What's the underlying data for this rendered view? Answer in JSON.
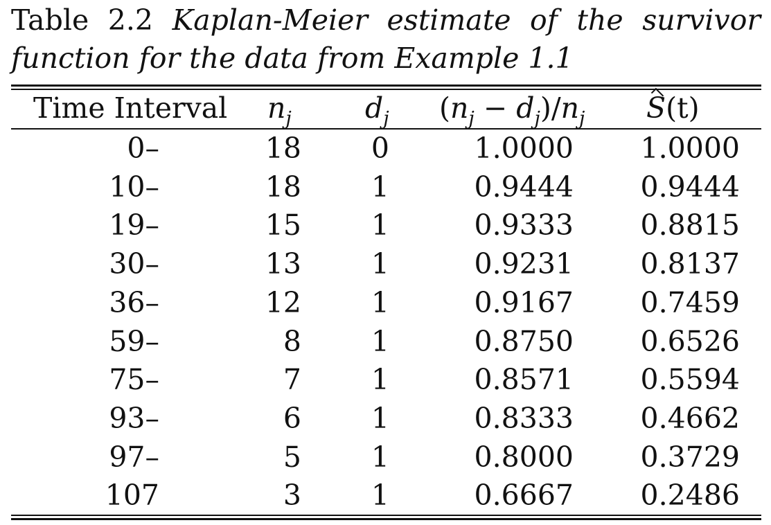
{
  "caption": {
    "label": "Table 2.2",
    "title_line1": "Kaplan-Meier estimate of the survivor",
    "title_line2": "function for the data from Example 1.1"
  },
  "table": {
    "headers": {
      "time_interval": "Time Interval",
      "nj_base": "n",
      "nj_sub": "j",
      "dj_base": "d",
      "dj_sub": "j",
      "ratio_open": "(",
      "ratio_n": "n",
      "ratio_minus": " − ",
      "ratio_d": "d",
      "ratio_close": ")/",
      "ratio_n2": "n",
      "ratio_sub": "j",
      "s_base": "S",
      "s_arg": "(t)"
    },
    "rows": [
      {
        "time": "0–",
        "nj": "18",
        "dj": "0",
        "ratio": "1.0000",
        "s": "1.0000"
      },
      {
        "time": "10–",
        "nj": "18",
        "dj": "1",
        "ratio": "0.9444",
        "s": "0.9444"
      },
      {
        "time": "19–",
        "nj": "15",
        "dj": "1",
        "ratio": "0.9333",
        "s": "0.8815"
      },
      {
        "time": "30–",
        "nj": "13",
        "dj": "1",
        "ratio": "0.9231",
        "s": "0.8137"
      },
      {
        "time": "36–",
        "nj": "12",
        "dj": "1",
        "ratio": "0.9167",
        "s": "0.7459"
      },
      {
        "time": "59–",
        "nj": "8",
        "dj": "1",
        "ratio": "0.8750",
        "s": "0.6526"
      },
      {
        "time": "75–",
        "nj": "7",
        "dj": "1",
        "ratio": "0.8571",
        "s": "0.5594"
      },
      {
        "time": "93–",
        "nj": "6",
        "dj": "1",
        "ratio": "0.8333",
        "s": "0.4662"
      },
      {
        "time": "97–",
        "nj": "5",
        "dj": "1",
        "ratio": "0.8000",
        "s": "0.3729"
      },
      {
        "time": "107",
        "nj": "3",
        "dj": "1",
        "ratio": "0.6667",
        "s": "0.2486"
      }
    ]
  }
}
